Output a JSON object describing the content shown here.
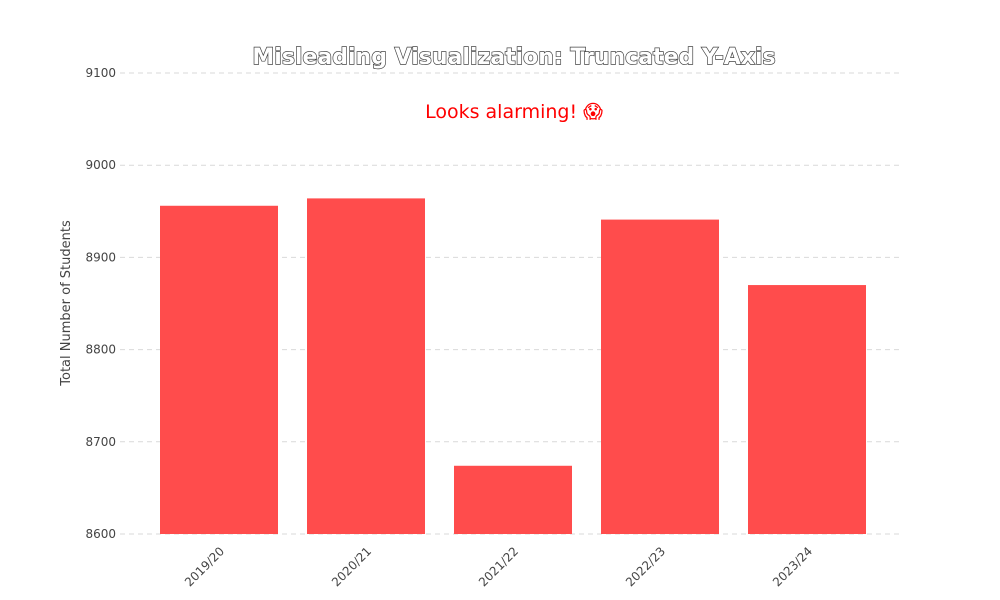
{
  "chart_data": {
    "type": "bar",
    "title": "Misleading Visualization: Truncated Y-Axis",
    "annotation": "Looks alarming! 😱",
    "xlabel": "",
    "ylabel": "Total Number of Students",
    "categories": [
      "2019/20",
      "2020/21",
      "2021/22",
      "2022/23",
      "2023/24"
    ],
    "values": [
      8956,
      8964,
      8674,
      8941,
      8870
    ],
    "ylim": [
      8600,
      9100
    ],
    "yticks": [
      8600,
      8700,
      8800,
      8900,
      9000,
      9100
    ],
    "grid": true,
    "legend": "none",
    "bar_color": "#ff4c4c"
  }
}
